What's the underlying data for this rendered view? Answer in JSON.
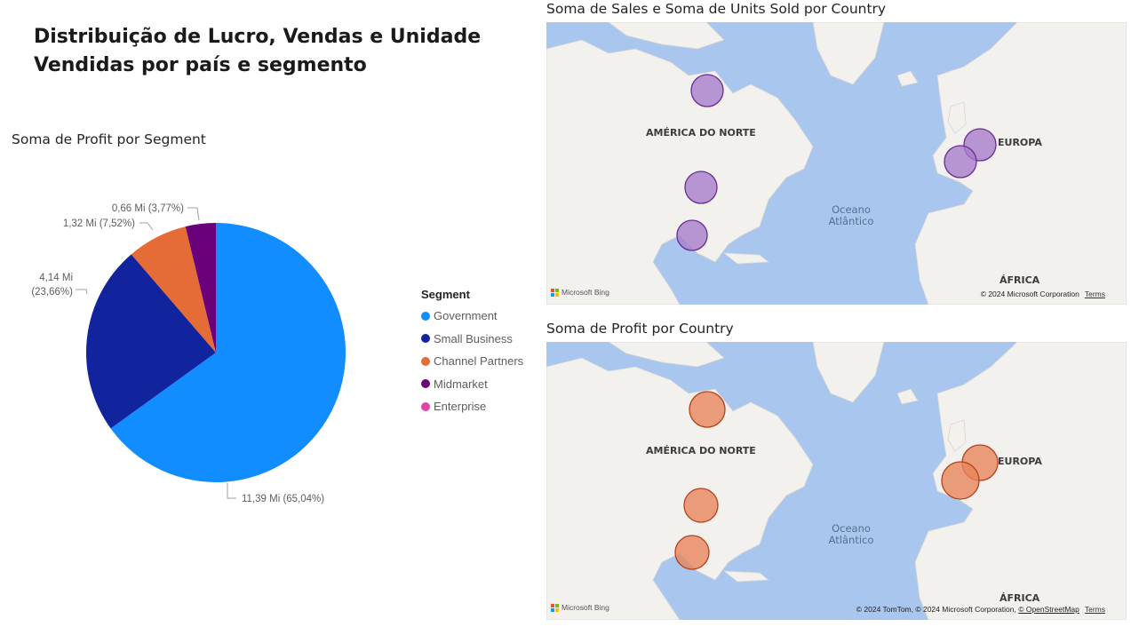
{
  "report": {
    "title_line1": "Distribuição de Lucro, Vendas e Unidade",
    "title_line2": "Vendidas por país e segmento"
  },
  "pie_visual": {
    "title": "Soma de Profit por Segment",
    "legend_title": "Segment",
    "legend": [
      {
        "label": "Government",
        "color": "#118DFF"
      },
      {
        "label": "Small Business",
        "color": "#12239E"
      },
      {
        "label": "Channel Partners",
        "color": "#E66C37"
      },
      {
        "label": "Midmarket",
        "color": "#6B007B"
      },
      {
        "label": "Enterprise",
        "color": "#E044A7"
      }
    ]
  },
  "chart_data": {
    "type": "pie",
    "title": "Soma de Profit por Segment",
    "slices": [
      {
        "name": "Government",
        "value": 11.39,
        "percent": 65.04,
        "label": "11,39 Mi (65,04%)",
        "color": "#118DFF"
      },
      {
        "name": "Small Business",
        "value": 4.14,
        "percent": 23.66,
        "label_line1": "4,14 Mi",
        "label_line2": "(23,66%)",
        "color": "#12239E"
      },
      {
        "name": "Channel Partners",
        "value": 1.32,
        "percent": 7.52,
        "label": "1,32 Mi (7,52%)",
        "color": "#E66C37"
      },
      {
        "name": "Midmarket",
        "value": 0.66,
        "percent": 3.77,
        "label": "0,66 Mi (3,77%)",
        "color": "#6B007B"
      }
    ],
    "unit": "Mi"
  },
  "map_sales": {
    "title": "Soma de Sales e Soma de Units Sold por Country",
    "bubble_color": "#A77BCB",
    "bubble_stroke": "#6A2C91",
    "labels": {
      "north_america": "AMÉRICA DO NORTE",
      "europe": "EUROPA",
      "africa": "ÁFRICA",
      "ocean_line1": "Oceano",
      "ocean_line2": "Atlântico"
    },
    "bing": "Microsoft Bing",
    "copyright": "© 2024 Microsoft Corporation",
    "terms": "Terms"
  },
  "map_profit": {
    "title": "Soma de Profit por Country",
    "bubble_color": "#E8845A",
    "bubble_stroke": "#B5401A",
    "labels": {
      "north_america": "AMÉRICA DO NORTE",
      "europe": "EUROPA",
      "africa": "ÁFRICA",
      "ocean_line1": "Oceano",
      "ocean_line2": "Atlântico"
    },
    "bing": "Microsoft Bing",
    "copyright_part1": "© 2024 TomTom, © 2024 Microsoft Corporation, ",
    "copyright_osm": "© OpenStreetMap",
    "terms": "Terms"
  }
}
